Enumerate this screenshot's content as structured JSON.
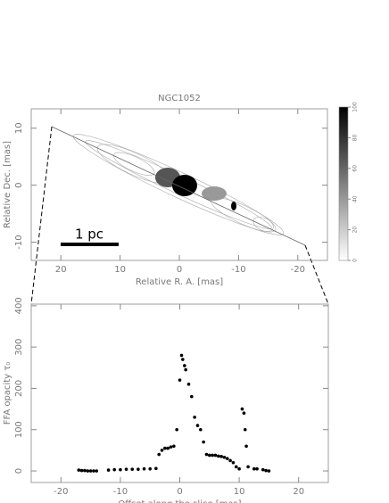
{
  "chart_data": [
    {
      "type": "image",
      "title": "NGC1052",
      "xlabel": "Relative R. A. [mas]",
      "ylabel": "Relative Dec. [mas]",
      "xlim": [
        25,
        -25
      ],
      "ylim": [
        -13.2,
        13.4
      ],
      "xticks": [
        20,
        10,
        0,
        -10,
        -20
      ],
      "yticks": [
        10,
        0,
        -10
      ],
      "annotation": "1 pc",
      "colorbar": {
        "lim": [
          0,
          100
        ],
        "ticks": [
          0,
          20,
          40,
          60,
          80,
          100
        ]
      }
    },
    {
      "type": "scatter",
      "xlabel": "Offset along the slice [mas]",
      "ylabel": "FFA opacity τ₀",
      "xlim": [
        -25,
        25
      ],
      "ylim": [
        -28,
        404
      ],
      "xticks": [
        -20,
        -10,
        0,
        10,
        20
      ],
      "yticks": [
        0,
        100,
        200,
        300,
        400
      ],
      "color": "#000000",
      "x": [
        -17,
        -16.5,
        -16,
        -15.5,
        -15,
        -14.5,
        -14,
        -12,
        -11,
        -10,
        -9,
        -8,
        -7,
        -6,
        -5,
        -4,
        -3.5,
        -3,
        -2.5,
        -2,
        -1.5,
        -1,
        -0.5,
        0,
        0.3,
        0.5,
        0.8,
        1,
        1.5,
        2,
        2.5,
        3,
        3.5,
        4,
        4.5,
        5,
        5.5,
        6,
        6.5,
        7,
        7.5,
        8,
        8.5,
        9,
        9.5,
        10,
        10.5,
        10.8,
        11,
        11.2,
        11.5,
        12.5,
        13,
        14,
        14.5,
        15
      ],
      "values": [
        2,
        1,
        1,
        0,
        0,
        0,
        0,
        2,
        3,
        3,
        4,
        4,
        4,
        5,
        5,
        6,
        40,
        50,
        55,
        55,
        58,
        60,
        100,
        220,
        280,
        270,
        255,
        245,
        210,
        180,
        130,
        110,
        100,
        70,
        40,
        38,
        38,
        38,
        36,
        35,
        33,
        30,
        25,
        20,
        10,
        5,
        150,
        140,
        100,
        60,
        10,
        5,
        5,
        3,
        1,
        0
      ]
    }
  ]
}
